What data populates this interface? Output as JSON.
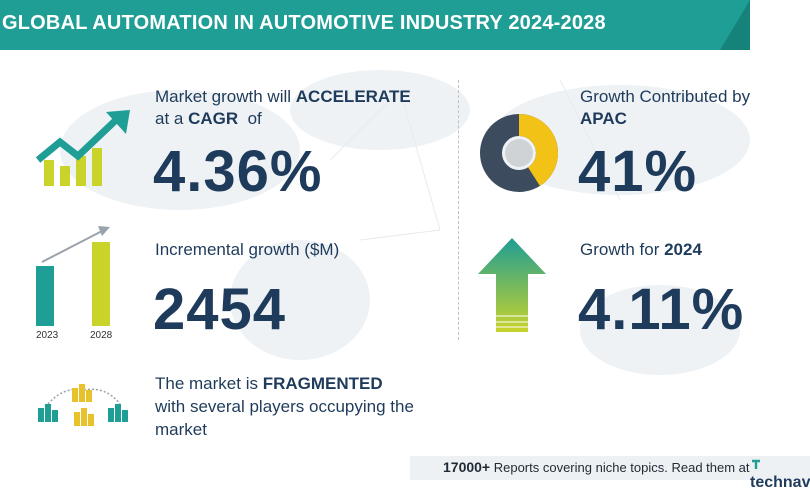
{
  "header": {
    "title": "GLOBAL AUTOMATION IN AUTOMOTIVE INDUSTRY 2024-2028"
  },
  "cagr": {
    "line1_prefix": "Market growth will ",
    "line1_bold": "ACCELERATE",
    "line2_prefix": "at a ",
    "line2_bold": "CAGR",
    "line2_suffix": "  of",
    "value": "4.36%"
  },
  "incremental": {
    "label": "Incremental growth ($M)",
    "value": "2454",
    "year_start": "2023",
    "year_end": "2028"
  },
  "market": {
    "line1_prefix": "The market is ",
    "line1_bold": "FRAGMENTED",
    "line2": "with several players occupying the",
    "line3": "market"
  },
  "region": {
    "label": "Growth Contributed by",
    "region_name": "APAC",
    "value": "41%",
    "share": 0.41
  },
  "growth_year": {
    "label_prefix": "Growth for ",
    "year": "2024",
    "value": "4.11%"
  },
  "footer": {
    "count": "17000+",
    "text": " Reports covering niche topics. Read them at",
    "brand": "technav"
  },
  "colors": {
    "teal": "#1f9e95",
    "navy": "#1f3b5b",
    "yellow_green": "#c9d32a",
    "slate": "#3c4c5e",
    "gold": "#f2c316"
  }
}
